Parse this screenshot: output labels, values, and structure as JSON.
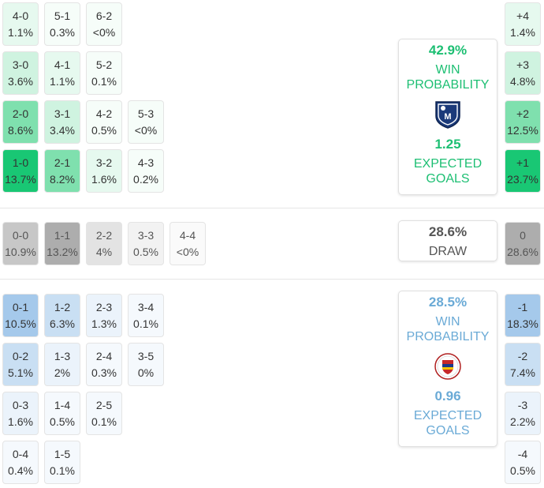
{
  "home": {
    "win_pct": "42.9%",
    "win_label_1": "WIN",
    "win_label_2": "PROBABILITY",
    "xg": "1.25",
    "xg_label_1": "EXPECTED",
    "xg_label_2": "GOALS",
    "crest_letter": "M",
    "crest_icon": "millonarios-crest-icon",
    "color": "#1dbf73",
    "scores": [
      {
        "score": "4-0",
        "pct": "1.1%",
        "level": 1
      },
      {
        "score": "5-1",
        "pct": "0.3%",
        "level": 0
      },
      {
        "score": "6-2",
        "pct": "<0%",
        "level": 0
      },
      {
        "score": "3-0",
        "pct": "3.6%",
        "level": 2
      },
      {
        "score": "4-1",
        "pct": "1.1%",
        "level": 1
      },
      {
        "score": "5-2",
        "pct": "0.1%",
        "level": 0
      },
      {
        "score": "2-0",
        "pct": "8.6%",
        "level": 4
      },
      {
        "score": "3-1",
        "pct": "3.4%",
        "level": 2
      },
      {
        "score": "4-2",
        "pct": "0.5%",
        "level": 0
      },
      {
        "score": "5-3",
        "pct": "<0%",
        "level": 0
      },
      {
        "score": "1-0",
        "pct": "13.7%",
        "level": 6
      },
      {
        "score": "2-1",
        "pct": "8.2%",
        "level": 4
      },
      {
        "score": "3-2",
        "pct": "1.6%",
        "level": 1
      },
      {
        "score": "4-3",
        "pct": "0.2%",
        "level": 0
      }
    ],
    "margins": [
      {
        "margin": "+4",
        "pct": "1.4%",
        "level": 1
      },
      {
        "margin": "+3",
        "pct": "4.8%",
        "level": 2
      },
      {
        "margin": "+2",
        "pct": "12.5%",
        "level": 4
      },
      {
        "margin": "+1",
        "pct": "23.7%",
        "level": 6
      }
    ]
  },
  "draw": {
    "pct": "28.6%",
    "label": "DRAW",
    "scores": [
      {
        "score": "0-0",
        "pct": "10.9%",
        "level": 3
      },
      {
        "score": "1-1",
        "pct": "13.2%",
        "level": 4
      },
      {
        "score": "2-2",
        "pct": "4%",
        "level": 2
      },
      {
        "score": "3-3",
        "pct": "0.5%",
        "level": 1
      },
      {
        "score": "4-4",
        "pct": "<0%",
        "level": 0
      }
    ],
    "margin": {
      "margin": "0",
      "pct": "28.6%",
      "level": 4
    }
  },
  "away": {
    "win_pct": "28.5%",
    "win_label_1": "WIN",
    "win_label_2": "PROBABILITY",
    "xg": "0.96",
    "xg_label_1": "EXPECTED",
    "xg_label_2": "GOALS",
    "crest_icon": "deportivo-pasto-crest-icon",
    "color": "#6aaad6",
    "scores": [
      {
        "score": "0-1",
        "pct": "10.5%",
        "level": 5
      },
      {
        "score": "1-2",
        "pct": "6.3%",
        "level": 3
      },
      {
        "score": "2-3",
        "pct": "1.3%",
        "level": 1
      },
      {
        "score": "3-4",
        "pct": "0.1%",
        "level": 0
      },
      {
        "score": "0-2",
        "pct": "5.1%",
        "level": 3
      },
      {
        "score": "1-3",
        "pct": "2%",
        "level": 1
      },
      {
        "score": "2-4",
        "pct": "0.3%",
        "level": 0
      },
      {
        "score": "3-5",
        "pct": "0%",
        "level": 0
      },
      {
        "score": "0-3",
        "pct": "1.6%",
        "level": 1
      },
      {
        "score": "1-4",
        "pct": "0.5%",
        "level": 0
      },
      {
        "score": "2-5",
        "pct": "0.1%",
        "level": 0
      },
      {
        "score": "0-4",
        "pct": "0.4%",
        "level": 0
      },
      {
        "score": "1-5",
        "pct": "0.1%",
        "level": 0
      }
    ],
    "margins": [
      {
        "margin": "-1",
        "pct": "18.3%",
        "level": 5
      },
      {
        "margin": "-2",
        "pct": "7.4%",
        "level": 3
      },
      {
        "margin": "-3",
        "pct": "2.2%",
        "level": 1
      },
      {
        "margin": "-4",
        "pct": "0.5%",
        "level": 0
      }
    ]
  },
  "palettes": {
    "green": [
      "#f6fdf9",
      "#e6f9ef",
      "#cff3e0",
      "#b2ecce",
      "#7fe0ae",
      "#55d393",
      "#19c774"
    ],
    "gray": [
      "#fafafa",
      "#f2f2f2",
      "#e3e3e3",
      "#c7c7c7",
      "#adadad"
    ],
    "blue": [
      "#f5f9fd",
      "#ebf3fb",
      "#dbeaf7",
      "#c9dff3",
      "#b7d4ef",
      "#a5c9eb"
    ]
  },
  "draw_text_color": "#555555"
}
